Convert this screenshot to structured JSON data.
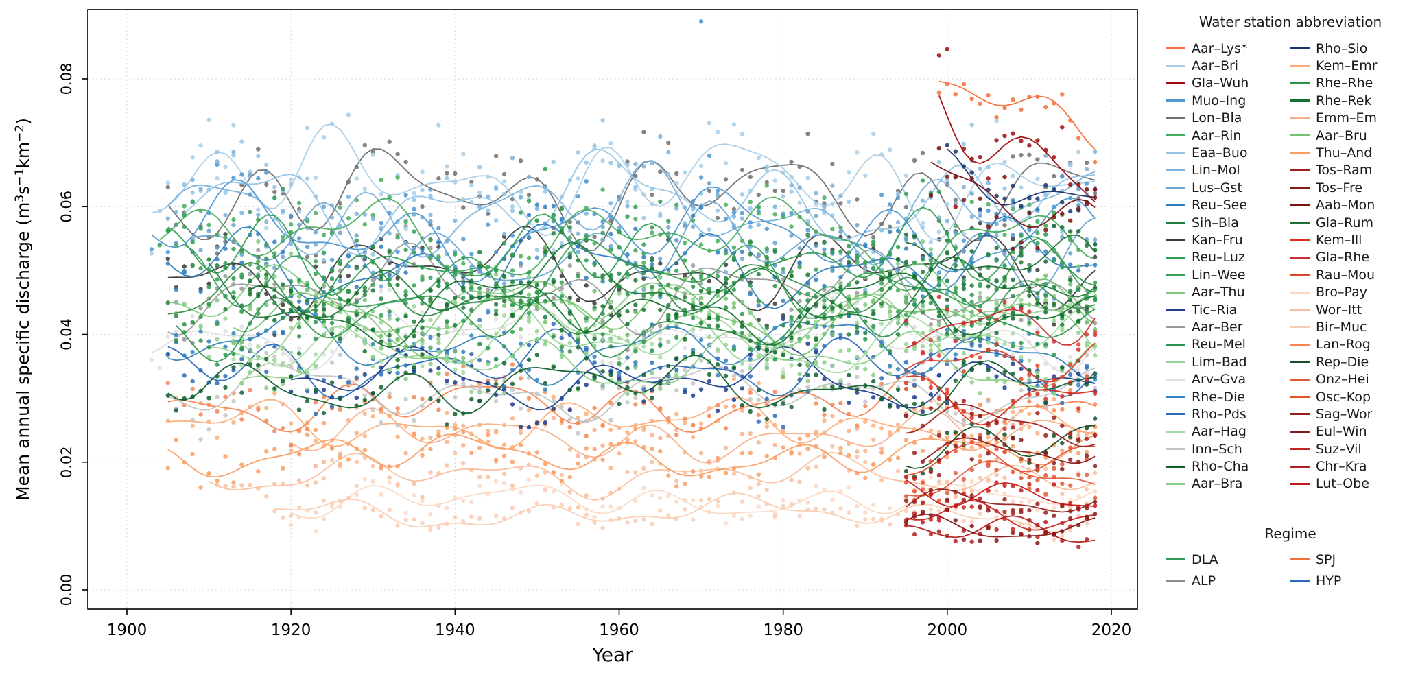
{
  "chart_data": {
    "type": "scatter",
    "title": "",
    "xlabel": "Year",
    "ylabel_text": "Mean annual specific discharge (m3s-1km-2)",
    "ylabel_parts": [
      {
        "t": "Mean annual specific discharge (m"
      },
      {
        "s": "3"
      },
      {
        "t": "s"
      },
      {
        "s": "−1"
      },
      {
        "t": "km"
      },
      {
        "s": "−2"
      },
      {
        "t": ")"
      }
    ],
    "xlim": [
      1895,
      2023
    ],
    "ylim": [
      0,
      0.09
    ],
    "xticks": [
      1900,
      1920,
      1940,
      1960,
      1980,
      2000,
      2020
    ],
    "yticks": [
      {
        "value": 0.0,
        "label": "0.00"
      },
      {
        "value": 0.02,
        "label": "0.02"
      },
      {
        "value": 0.04,
        "label": "0.04"
      },
      {
        "value": 0.06,
        "label": "0.06"
      },
      {
        "value": 0.08,
        "label": "0.08"
      }
    ],
    "grid": "dotted",
    "legend_position": "right",
    "series": [
      {
        "name": "Bro–Pay",
        "regime": "SPJ",
        "color": "#fbd8c3",
        "years": [
          1920,
          2018
        ],
        "level": 0.014
      },
      {
        "name": "Bir–Muc",
        "regime": "SPJ",
        "color": "#f9cdb4",
        "years": [
          1918,
          2018
        ],
        "level": 0.012
      },
      {
        "name": "Wor–Itt",
        "regime": "SPJ",
        "color": "#f9c09e",
        "years": [
          1910,
          2018
        ],
        "level": 0.018
      },
      {
        "name": "Emm–Em",
        "regime": "SPJ",
        "color": "#f8b08a",
        "years": [
          1920,
          2018
        ],
        "level": 0.024
      },
      {
        "name": "Kem–Emr",
        "regime": "SPJ",
        "color": "#fcae79",
        "years": [
          1905,
          2018
        ],
        "level": 0.026
      },
      {
        "name": "Thu–And",
        "regime": "SPJ",
        "color": "#f99e62",
        "years": [
          1905,
          2018
        ],
        "level": 0.021
      },
      {
        "name": "Lan–Rog",
        "regime": "SPJ",
        "color": "#f58653",
        "years": [
          1905,
          2018
        ],
        "level": 0.029
      },
      {
        "name": "Arv–Gva",
        "regime": "ALP",
        "color": "#dedede",
        "years": [
          1903,
          2018
        ],
        "level": 0.04
      },
      {
        "name": "Inn–Sch",
        "regime": "ALP",
        "color": "#c4c4c4",
        "years": [
          1905,
          2018
        ],
        "level": 0.031
      },
      {
        "name": "Aar–Ber",
        "regime": "ALP",
        "color": "#9a9a9a",
        "years": [
          1905,
          2018
        ],
        "level": 0.047
      },
      {
        "name": "Lon–Bla",
        "regime": "ALP",
        "color": "#6f6f6f",
        "years": [
          1905,
          2018
        ],
        "level": 0.062
      },
      {
        "name": "Kan–Fru",
        "regime": "ALP",
        "color": "#3a3a3a",
        "years": [
          1905,
          2018
        ],
        "level": 0.05
      },
      {
        "name": "Aar–Bri",
        "regime": "HYP",
        "color": "#a8cee8",
        "years": [
          1903,
          2018
        ],
        "level": 0.064
      },
      {
        "name": "Eaa–Buo",
        "regime": "HYP",
        "color": "#93c4e4",
        "years": [
          1907,
          2018
        ],
        "level": 0.061
      },
      {
        "name": "Lin–Mol",
        "regime": "HYP",
        "color": "#7ab2dc",
        "years": [
          1905,
          2018
        ],
        "level": 0.059
      },
      {
        "name": "Muo–Ing",
        "regime": "HYP",
        "color": "#4e97d1",
        "years": [
          1903,
          2018
        ],
        "level": 0.056
      },
      {
        "name": "Lus–Gst",
        "regime": "HYP",
        "color": "#6aa3cf",
        "years": [
          1908,
          2018
        ],
        "level": 0.053
      },
      {
        "name": "Reu–See",
        "regime": "HYP",
        "color": "#2e7ebc",
        "years": [
          1905,
          2018
        ],
        "level": 0.051
      },
      {
        "name": "Rhe–Die",
        "regime": "HYP",
        "color": "#3182bd",
        "years": [
          1905,
          2018
        ],
        "level": 0.038
      },
      {
        "name": "Rho–Pds",
        "regime": "HYP",
        "color": "#2b6cb8",
        "years": [
          1905,
          2018
        ],
        "level": 0.035
      },
      {
        "name": "Tic–Ria",
        "regime": "HYP",
        "color": "#1c3e8c",
        "years": [
          1920,
          2018
        ],
        "level": 0.033
      },
      {
        "name": "Aar–Thu",
        "regime": "DLA",
        "color": "#7fca7f",
        "years": [
          1905,
          2018
        ],
        "level": 0.045
      },
      {
        "name": "Lim–Bad",
        "regime": "DLA",
        "color": "#96d492",
        "years": [
          1910,
          2018
        ],
        "level": 0.041
      },
      {
        "name": "Aar–Hag",
        "regime": "DLA",
        "color": "#a5dba0",
        "years": [
          1913,
          2018
        ],
        "level": 0.039
      },
      {
        "name": "Aar–Bra",
        "regime": "DLA",
        "color": "#8ccf88",
        "years": [
          1914,
          2018
        ],
        "level": 0.036
      },
      {
        "name": "Aar–Bru",
        "regime": "DLA",
        "color": "#72c06e",
        "years": [
          1913,
          2018
        ],
        "level": 0.043
      },
      {
        "name": "Aar–Rin",
        "regime": "DLA",
        "color": "#46ad5c",
        "years": [
          1904,
          2018
        ],
        "level": 0.055
      },
      {
        "name": "Reu–Luz",
        "regime": "DLA",
        "color": "#2f9e50",
        "years": [
          1905,
          2018
        ],
        "level": 0.052
      },
      {
        "name": "Lin–Wee",
        "regime": "DLA",
        "color": "#37a055",
        "years": [
          1907,
          2018
        ],
        "level": 0.049
      },
      {
        "name": "Rhe–Rhe",
        "regime": "DLA",
        "color": "#2f8f46",
        "years": [
          1905,
          2018
        ],
        "level": 0.046
      },
      {
        "name": "Reu–Mel",
        "regime": "DLA",
        "color": "#2c944c",
        "years": [
          1906,
          2018
        ],
        "level": 0.042
      },
      {
        "name": "Sih–Bla",
        "regime": "DLA",
        "color": "#1e7d39",
        "years": [
          1910,
          2018
        ],
        "level": 0.047
      },
      {
        "name": "Rhe–Rek",
        "regime": "DLA",
        "color": "#15702f",
        "years": [
          1915,
          2018
        ],
        "level": 0.044
      },
      {
        "name": "Rho–Cha",
        "regime": "DLA",
        "color": "#0f5f2d",
        "years": [
          1905,
          2018
        ],
        "level": 0.032
      },
      {
        "name": "Gla–Rum",
        "regime": "DLA",
        "color": "#1d6b35",
        "years": [
          1995,
          2018
        ],
        "level": 0.05
      },
      {
        "name": "Rep–Die",
        "regime": "DLA",
        "color": "#174f28",
        "years": [
          1995,
          2018
        ],
        "level": 0.023
      },
      {
        "name": "Rho–Sio",
        "regime": "HYP",
        "color": "#17356d",
        "years": [
          2000,
          2018
        ],
        "level": 0.063,
        "amp": 0.0025,
        "pnoise": 0.003,
        "trend": -0.00045
      },
      {
        "name": "Onz–Hei",
        "regime": "SPJ",
        "color": "#e25c3a",
        "years": [
          1995,
          2018
        ],
        "level": 0.017
      },
      {
        "name": "Osc–Kop",
        "regime": "SPJ",
        "color": "#e8502e",
        "years": [
          1995,
          2018
        ],
        "level": 0.02
      },
      {
        "name": "Rau–Mou",
        "regime": "SPJ",
        "color": "#e0442c",
        "years": [
          1995,
          2018
        ],
        "level": 0.036
      },
      {
        "name": "Gla–Rhe",
        "regime": "SPJ",
        "color": "#cb2f2f",
        "years": [
          1995,
          2018
        ],
        "level": 0.043
      },
      {
        "name": "Kem–Ill",
        "regime": "SPJ",
        "color": "#d7301f",
        "years": [
          1995,
          2018
        ],
        "level": 0.031
      },
      {
        "name": "Suz–Vil",
        "regime": "SPJ",
        "color": "#c22722",
        "years": [
          1995,
          2018
        ],
        "level": 0.012
      },
      {
        "name": "Chr–Kra",
        "regime": "SPJ",
        "color": "#b31f1f",
        "years": [
          1995,
          2018
        ],
        "level": 0.009
      },
      {
        "name": "Lut–Obe",
        "regime": "SPJ",
        "color": "#c61a1a",
        "years": [
          1995,
          2018
        ],
        "level": 0.015
      },
      {
        "name": "Sag–Wor",
        "regime": "SPJ",
        "color": "#93201c",
        "years": [
          1995,
          2018
        ],
        "level": 0.013
      },
      {
        "name": "Eul–Win",
        "regime": "SPJ",
        "color": "#891616",
        "years": [
          1995,
          2018
        ],
        "level": 0.01
      },
      {
        "name": "Tos–Ram",
        "regime": "SPJ",
        "color": "#a01f1f",
        "years": [
          1995,
          2018
        ],
        "level": 0.027
      },
      {
        "name": "Tos–Fre",
        "regime": "SPJ",
        "color": "#8c1a1a",
        "years": [
          1997,
          2018
        ],
        "level": 0.023
      },
      {
        "name": "Aab–Mon",
        "regime": "SPJ",
        "color": "#7a1010",
        "years": [
          1998,
          2018
        ],
        "level": 0.06,
        "amp": 0.003,
        "pnoise": 0.005,
        "trend": -0.0003
      },
      {
        "name": "Gla–Wuh",
        "regime": "SPJ",
        "color": "#9e0b0f",
        "years": [
          1999,
          2018
        ],
        "level": 0.068,
        "amp": 0.0045,
        "pnoise": 0.0085,
        "trend": -0.0004
      },
      {
        "name": "Aar–Lys*",
        "regime": "SPJ",
        "color": "#f4713b",
        "years": [
          1999,
          2018
        ],
        "level": 0.0765,
        "amp": 0.0025,
        "pnoise": 0.0028,
        "trend": -0.00045
      }
    ],
    "outliers": [
      {
        "station": "Muo–Ing",
        "year": 1970,
        "value": 0.089
      }
    ]
  },
  "legend": {
    "title": "Water station abbreviation",
    "columns": [
      [
        "Aar–Lys*",
        "Aar–Bri",
        "Gla–Wuh",
        "Muo–Ing",
        "Lon–Bla",
        "Aar–Rin",
        "Eaa–Buo",
        "Lin–Mol",
        "Lus–Gst",
        "Reu–See",
        "Sih–Bla",
        "Kan–Fru",
        "Reu–Luz",
        "Lin–Wee",
        "Aar–Thu",
        "Tic–Ria",
        "Aar–Ber",
        "Reu–Mel",
        "Lim–Bad",
        "Arv–Gva",
        "Rhe–Die",
        "Rho–Pds",
        "Aar–Hag",
        "Inn–Sch",
        "Rho–Cha",
        "Aar–Bra"
      ],
      [
        "Rho–Sio",
        "Kem–Emr",
        "Rhe–Rhe",
        "Rhe–Rek",
        "Emm–Em",
        "Aar–Bru",
        "Thu–And",
        "Tos–Ram",
        "Tos–Fre",
        "Aab–Mon",
        "Gla–Rum",
        "Kem–Ill",
        "Gla–Rhe",
        "Rau–Mou",
        "Bro–Pay",
        "Wor–Itt",
        "Bir–Muc",
        "Lan–Rog",
        "Rep–Die",
        "Onz–Hei",
        "Osc–Kop",
        "Sag–Wor",
        "Eul–Win",
        "Suz–Vil",
        "Chr–Kra",
        "Lut–Obe"
      ]
    ],
    "regime_title": "Regime",
    "regime_columns": [
      [
        {
          "label": "DLA",
          "color": "#339950"
        },
        {
          "label": "ALP",
          "color": "#8c8c8c"
        }
      ],
      [
        {
          "label": "SPJ",
          "color": "#f4713b"
        },
        {
          "label": "HYP",
          "color": "#2b6cb8"
        }
      ]
    ]
  }
}
